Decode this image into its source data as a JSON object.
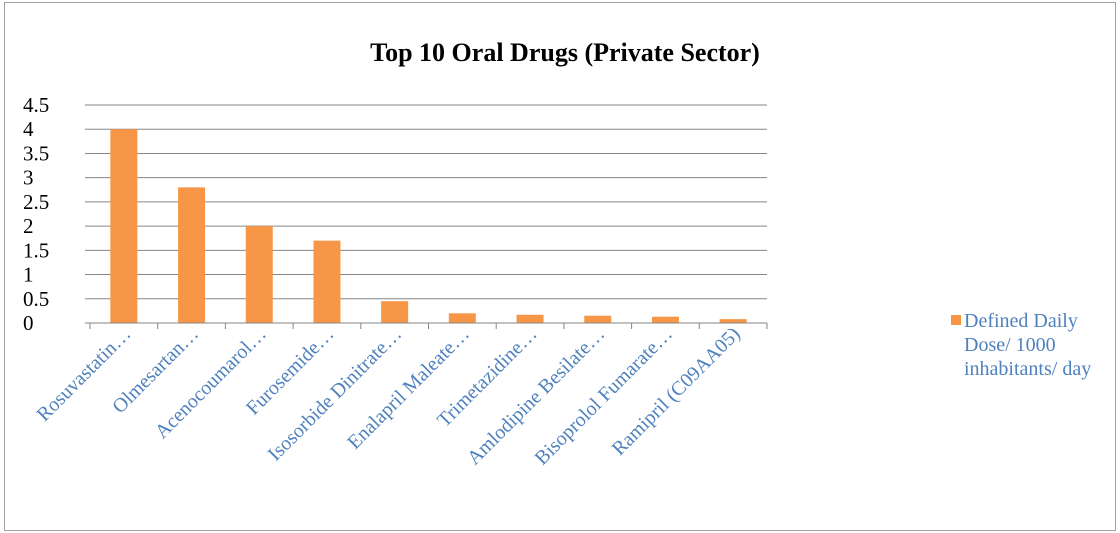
{
  "chart_data": {
    "type": "bar",
    "title": "Top 10 Oral Drugs (Private Sector)",
    "xlabel": "",
    "ylabel": "",
    "categories": [
      "Rosuvastatin…",
      "Olmesartan…",
      "Acenocoumarol…",
      "Furosemide…",
      "Isosorbide Dinitrate…",
      "Enalapril Maleate…",
      "Trimetazidine…",
      "Amlodipine Besilate…",
      "Bisoprolol Fumarate…",
      "Ramipril (C09AA05)"
    ],
    "series": [
      {
        "name": "Defined Daily Dose/ 1000 inhabitants/ day",
        "color": "#f79646",
        "values": [
          4.0,
          2.8,
          2.0,
          1.7,
          0.45,
          0.2,
          0.17,
          0.15,
          0.13,
          0.08
        ]
      }
    ],
    "ylim": [
      0,
      4.5
    ],
    "yticks": [
      "0",
      "0.5",
      "1",
      "1.5",
      "2",
      "2.5",
      "3",
      "3.5",
      "4",
      "4.5"
    ],
    "grid": true,
    "legend_position": "right",
    "category_label_color": "#4f81bd",
    "axis_color": "#868686"
  }
}
